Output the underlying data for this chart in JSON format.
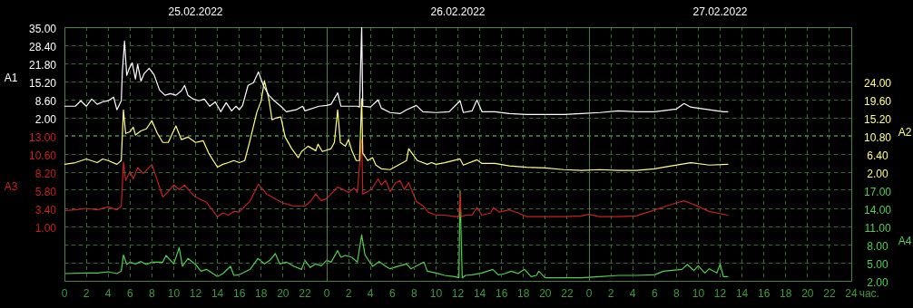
{
  "chart_data": [
    {
      "type": "line",
      "xlabel": "час.",
      "ylabel": "A1",
      "y2label": "A2",
      "xlim": [
        "2022-02-25T00:00",
        "2022-02-28T00:00"
      ],
      "xticks": [
        {
          "value": "2022-02-25T00:00",
          "label": "0"
        },
        {
          "value": "2022-02-25T02:00",
          "label": "2"
        },
        {
          "value": "2022-02-25T04:00",
          "label": "4"
        },
        {
          "value": "2022-02-25T06:00",
          "label": "6"
        },
        {
          "value": "2022-02-25T08:00",
          "label": "8"
        },
        {
          "value": "2022-02-25T10:00",
          "label": "10"
        },
        {
          "value": "2022-02-25T12:00",
          "label": "12"
        },
        {
          "value": "2022-02-25T14:00",
          "label": "14"
        },
        {
          "value": "2022-02-25T16:00",
          "label": "16"
        },
        {
          "value": "2022-02-25T18:00",
          "label": "18"
        },
        {
          "value": "2022-02-25T20:00",
          "label": "20"
        },
        {
          "value": "2022-02-25T22:00",
          "label": "22"
        },
        {
          "value": "2022-02-26T00:00",
          "label": "0"
        },
        {
          "value": "2022-02-26T02:00",
          "label": "2"
        },
        {
          "value": "2022-02-26T04:00",
          "label": "4"
        },
        {
          "value": "2022-02-26T06:00",
          "label": "6"
        },
        {
          "value": "2022-02-26T08:00",
          "label": "8"
        },
        {
          "value": "2022-02-26T10:00",
          "label": "10"
        },
        {
          "value": "2022-02-26T12:00",
          "label": "12"
        },
        {
          "value": "2022-02-26T14:00",
          "label": "14"
        },
        {
          "value": "2022-02-26T16:00",
          "label": "16"
        },
        {
          "value": "2022-02-26T18:00",
          "label": "18"
        },
        {
          "value": "2022-02-26T20:00",
          "label": "20"
        },
        {
          "value": "2022-02-26T22:00",
          "label": "22"
        },
        {
          "value": "2022-02-27T00:00",
          "label": "0"
        },
        {
          "value": "2022-02-27T02:00",
          "label": "2"
        },
        {
          "value": "2022-02-27T04:00",
          "label": "4"
        },
        {
          "value": "2022-02-27T06:00",
          "label": "6"
        },
        {
          "value": "2022-02-27T08:00",
          "label": "8"
        },
        {
          "value": "2022-02-27T10:00",
          "label": "10"
        },
        {
          "value": "2022-02-27T12:00",
          "label": "12"
        },
        {
          "value": "2022-02-27T14:00",
          "label": "14"
        },
        {
          "value": "2022-02-27T16:00",
          "label": "16"
        },
        {
          "value": "2022-02-27T18:00",
          "label": "18"
        },
        {
          "value": "2022-02-27T20:00",
          "label": "20"
        },
        {
          "value": "2022-02-27T22:00",
          "label": "22"
        },
        {
          "value": "2022-02-28T00:00",
          "label": "24"
        }
      ],
      "x2lim": [
        "2022-02-25T00:00",
        "2022-02-28T00:00"
      ],
      "x2ticks": [
        {
          "value": "2022-02-25T12:00",
          "label": "25.02.2022"
        },
        {
          "value": "2022-02-26T12:00",
          "label": "26.02.2022"
        },
        {
          "value": "2022-02-27T12:00",
          "label": "27.02.2022"
        }
      ],
      "ylim": [
        -57.4,
        35
      ],
      "yticks": [
        {
          "value": 2,
          "label": "2.00"
        },
        {
          "value": 8.6,
          "label": "8.60"
        },
        {
          "value": 15.2,
          "label": "15.20"
        },
        {
          "value": 21.8,
          "label": "21.80"
        },
        {
          "value": 28.4,
          "label": "28.40"
        },
        {
          "value": 35,
          "label": "35.00"
        }
      ],
      "y2lim": [
        -24.4,
        37.2
      ],
      "y2ticks": [
        {
          "value": 2,
          "label": "2.00"
        },
        {
          "value": 6.4,
          "label": "6.40"
        },
        {
          "value": 10.8,
          "label": "10.80"
        },
        {
          "value": 15.2,
          "label": "15.20"
        },
        {
          "value": 19.6,
          "label": "19.60"
        },
        {
          "value": 24,
          "label": "24.00"
        }
      ],
      "grid": true,
      "marker": "none",
      "line_style": "solid",
      "series": [
        {
          "axis": "y",
          "color": "#ffffff",
          "x": [
            "2022-02-25T00:00",
            "2022-02-25T01:00",
            "2022-02-25T01:30",
            "2022-02-25T02:00",
            "2022-02-25T02:30",
            "2022-02-25T03:00",
            "2022-02-25T03:30",
            "2022-02-25T04:00",
            "2022-02-25T04:30",
            "2022-02-25T04:48",
            "2022-02-25T05:12",
            "2022-02-25T05:18",
            "2022-02-25T05:30",
            "2022-02-25T05:42",
            "2022-02-25T05:54",
            "2022-02-25T06:12",
            "2022-02-25T06:30",
            "2022-02-25T06:42",
            "2022-02-25T07:00",
            "2022-02-25T07:18",
            "2022-02-25T07:45",
            "2022-02-25T08:12",
            "2022-02-25T08:42",
            "2022-02-25T09:12",
            "2022-02-25T09:42",
            "2022-02-25T10:12",
            "2022-02-25T10:42",
            "2022-02-25T11:00",
            "2022-02-25T11:18",
            "2022-02-25T11:48",
            "2022-02-25T12:18",
            "2022-02-25T12:48",
            "2022-02-25T13:18",
            "2022-02-25T13:48",
            "2022-02-25T14:18",
            "2022-02-25T14:48",
            "2022-02-25T15:18",
            "2022-02-25T15:42",
            "2022-02-25T16:00",
            "2022-02-25T16:18",
            "2022-02-25T16:48",
            "2022-02-25T17:18",
            "2022-02-25T17:45",
            "2022-02-25T18:12",
            "2022-02-25T18:42",
            "2022-02-25T19:12",
            "2022-02-25T19:48",
            "2022-02-25T20:18",
            "2022-02-25T21:12",
            "2022-02-25T21:48",
            "2022-02-25T22:00",
            "2022-02-25T23:18",
            "2022-02-26T00:00",
            "2022-02-26T00:24",
            "2022-02-26T01:00",
            "2022-02-26T01:18",
            "2022-02-26T02:06",
            "2022-02-26T02:48",
            "2022-02-26T03:00",
            "2022-02-26T03:12",
            "2022-02-26T03:18",
            "2022-02-26T04:00",
            "2022-02-26T04:42",
            "2022-02-26T05:00",
            "2022-02-26T05:48",
            "2022-02-26T06:42",
            "2022-02-26T07:18",
            "2022-02-26T08:12",
            "2022-02-26T08:48",
            "2022-02-26T10:00",
            "2022-02-26T11:12",
            "2022-02-26T12:12",
            "2022-02-26T12:30",
            "2022-02-26T13:18",
            "2022-02-26T13:45",
            "2022-02-26T14:12",
            "2022-02-26T15:24",
            "2022-02-26T16:42",
            "2022-02-26T18:18",
            "2022-02-26T20:00",
            "2022-02-26T21:42",
            "2022-02-26T23:18",
            "2022-02-27T01:00",
            "2022-02-27T02:42",
            "2022-02-27T04:18",
            "2022-02-27T06:00",
            "2022-02-27T08:00",
            "2022-02-27T08:42",
            "2022-02-27T09:18",
            "2022-02-27T11:00",
            "2022-02-27T12:18",
            "2022-02-27T12:42"
          ],
          "values": [
            6.2,
            6.2,
            8.2,
            6.2,
            8.8,
            6.9,
            7.8,
            8.2,
            9.5,
            4.9,
            8.2,
            18.7,
            29.9,
            17.4,
            19.7,
            22.0,
            16.1,
            21.4,
            15.4,
            18.1,
            20.0,
            17.7,
            12.1,
            10.2,
            10.8,
            10.2,
            11.8,
            13.8,
            10.2,
            8.8,
            8.2,
            8.8,
            6.2,
            7.8,
            4.2,
            7.5,
            4.5,
            6.2,
            4.9,
            6.5,
            13.8,
            14.8,
            18.7,
            13.8,
            10.2,
            8.2,
            6.2,
            4.2,
            4.9,
            6.2,
            4.5,
            6.2,
            6.5,
            6.9,
            11.1,
            6.2,
            6.2,
            6.2,
            5.9,
            35,
            6.2,
            5.9,
            8.5,
            5.5,
            3.9,
            3.5,
            4.9,
            6.5,
            4.2,
            3.9,
            4.2,
            8.2,
            3.9,
            4.5,
            8.5,
            4.2,
            4.2,
            3.5,
            3.2,
            3.2,
            3.2,
            3.5,
            3.9,
            4.5,
            4.2,
            4.2,
            5.2,
            7.2,
            5.9,
            4.9,
            4.2,
            4.2
          ]
        },
        {
          "axis": "y2",
          "color": "#ffff80",
          "x": [
            "2022-02-25T00:00",
            "2022-02-25T01:00",
            "2022-02-25T02:00",
            "2022-02-25T03:00",
            "2022-02-25T03:30",
            "2022-02-25T04:00",
            "2022-02-25T04:48",
            "2022-02-25T05:12",
            "2022-02-25T05:24",
            "2022-02-25T05:36",
            "2022-02-25T06:00",
            "2022-02-25T06:18",
            "2022-02-25T06:30",
            "2022-02-25T07:00",
            "2022-02-25T07:30",
            "2022-02-25T08:00",
            "2022-02-25T08:30",
            "2022-02-25T09:00",
            "2022-02-25T09:30",
            "2022-02-25T10:12",
            "2022-02-25T10:42",
            "2022-02-25T11:18",
            "2022-02-25T12:00",
            "2022-02-25T12:42",
            "2022-02-25T13:12",
            "2022-02-25T14:00",
            "2022-02-25T14:30",
            "2022-02-25T15:00",
            "2022-02-25T15:30",
            "2022-02-25T16:00",
            "2022-02-25T16:30",
            "2022-02-25T17:00",
            "2022-02-25T17:36",
            "2022-02-25T18:00",
            "2022-02-25T18:18",
            "2022-02-25T18:42",
            "2022-02-25T19:00",
            "2022-02-25T19:18",
            "2022-02-25T19:48",
            "2022-02-25T20:12",
            "2022-02-25T20:48",
            "2022-02-25T21:24",
            "2022-02-25T21:42",
            "2022-02-25T22:18",
            "2022-02-25T23:00",
            "2022-02-25T23:12",
            "2022-02-25T23:36",
            "2022-02-26T00:24",
            "2022-02-26T00:42",
            "2022-02-26T01:00",
            "2022-02-26T01:15",
            "2022-02-26T01:42",
            "2022-02-26T02:00",
            "2022-02-26T02:18",
            "2022-02-26T02:42",
            "2022-02-26T03:00",
            "2022-02-26T03:12",
            "2022-02-26T03:18",
            "2022-02-26T03:45",
            "2022-02-26T04:12",
            "2022-02-26T04:30",
            "2022-02-26T05:00",
            "2022-02-26T05:48",
            "2022-02-26T07:18",
            "2022-02-26T07:30",
            "2022-02-26T08:18",
            "2022-02-26T09:12",
            "2022-02-26T09:36",
            "2022-02-26T10:00",
            "2022-02-26T10:48",
            "2022-02-26T12:12",
            "2022-02-26T12:30",
            "2022-02-26T13:45",
            "2022-02-26T14:12",
            "2022-02-26T15:24",
            "2022-02-26T16:42",
            "2022-02-26T18:18",
            "2022-02-26T20:00",
            "2022-02-26T21:42",
            "2022-02-26T23:18",
            "2022-02-27T01:00",
            "2022-02-27T02:42",
            "2022-02-27T04:18",
            "2022-02-27T06:00",
            "2022-02-27T06:48",
            "2022-02-27T09:18",
            "2022-02-27T11:00",
            "2022-02-27T12:42"
          ],
          "values": [
            3.9,
            4.3,
            5.2,
            4.3,
            5.2,
            4.8,
            3.9,
            4.8,
            17.1,
            11.4,
            11.8,
            12.9,
            11.0,
            12.0,
            12.5,
            14.5,
            11.4,
            9.2,
            9.2,
            13.2,
            9.9,
            10.5,
            9.2,
            9.6,
            6.6,
            3.2,
            3.9,
            4.3,
            4.8,
            4.3,
            4.8,
            9.9,
            16.5,
            19.3,
            24.2,
            19.8,
            14.7,
            15.1,
            15.4,
            10.5,
            7.7,
            5.5,
            7.0,
            8.3,
            7.2,
            8.8,
            7.0,
            7.7,
            9.2,
            17.1,
            9.2,
            8.3,
            9.9,
            7.2,
            4.8,
            4.8,
            19.8,
            6.6,
            4.8,
            5.5,
            3.7,
            2.8,
            2.6,
            4.8,
            7.7,
            4.8,
            3.9,
            4.3,
            3.9,
            4.3,
            5.2,
            3.7,
            5.0,
            4.1,
            4.1,
            3.5,
            3.2,
            3.0,
            2.6,
            2.4,
            2.6,
            2.4,
            2.4,
            2.8,
            3.2,
            4.3,
            3.7,
            3.9
          ]
        }
      ]
    },
    {
      "type": "line",
      "ylabel": "A3",
      "y2label": "A4",
      "tick_labels": "y",
      "xlim": [
        "2022-02-25T00:00",
        "2022-02-28T00:00"
      ],
      "ylim": [
        -6.2,
        27.4
      ],
      "yticks": [
        {
          "value": 1,
          "label": "1.00"
        },
        {
          "value": 3.4,
          "label": "3.40"
        },
        {
          "value": 5.8,
          "label": "5.80"
        },
        {
          "value": 8.2,
          "label": "8.20"
        },
        {
          "value": 10.6,
          "label": "10.60"
        },
        {
          "value": 13,
          "label": "13.00"
        }
      ],
      "y2lim": [
        2,
        44
      ],
      "y2ticks": [
        {
          "value": 2,
          "label": "2.00"
        },
        {
          "value": 5,
          "label": "5.00"
        },
        {
          "value": 8,
          "label": "8.00"
        },
        {
          "value": 11,
          "label": "11.00"
        },
        {
          "value": 14,
          "label": "14.00"
        },
        {
          "value": 17,
          "label": "17.00"
        }
      ],
      "grid": "y",
      "marker": "none",
      "line_style": "solid",
      "series": [
        {
          "axis": "y",
          "color": "#c82020",
          "x": [
            "2022-02-25T00:00",
            "2022-02-25T01:00",
            "2022-02-25T02:00",
            "2022-02-25T03:00",
            "2022-02-25T04:00",
            "2022-02-25T04:48",
            "2022-02-25T05:12",
            "2022-02-25T05:24",
            "2022-02-25T05:36",
            "2022-02-25T06:00",
            "2022-02-25T06:18",
            "2022-02-25T06:42",
            "2022-02-25T07:12",
            "2022-02-25T08:00",
            "2022-02-25T08:30",
            "2022-02-25T09:00",
            "2022-02-25T09:30",
            "2022-02-25T10:00",
            "2022-02-25T10:30",
            "2022-02-25T11:00",
            "2022-02-25T11:30",
            "2022-02-25T12:00",
            "2022-02-25T13:00",
            "2022-02-25T14:00",
            "2022-02-25T14:30",
            "2022-02-25T15:00",
            "2022-02-25T15:30",
            "2022-02-25T16:00",
            "2022-02-25T17:00",
            "2022-02-25T17:45",
            "2022-02-25T18:30",
            "2022-02-25T19:00",
            "2022-02-25T20:00",
            "2022-02-25T21:00",
            "2022-02-25T22:00",
            "2022-02-25T22:30",
            "2022-02-25T23:00",
            "2022-02-25T23:30",
            "2022-02-26T00:00",
            "2022-02-26T01:00",
            "2022-02-26T01:30",
            "2022-02-26T02:00",
            "2022-02-26T02:30",
            "2022-02-26T02:48",
            "2022-02-26T03:12",
            "2022-02-26T03:18",
            "2022-02-26T03:45",
            "2022-02-26T04:12",
            "2022-02-26T04:42",
            "2022-02-26T05:00",
            "2022-02-26T05:24",
            "2022-02-26T05:48",
            "2022-02-26T06:15",
            "2022-02-26T06:42",
            "2022-02-26T07:06",
            "2022-02-26T07:30",
            "2022-02-26T08:12",
            "2022-02-26T08:45",
            "2022-02-26T09:18",
            "2022-02-26T10:00",
            "2022-02-26T10:48",
            "2022-02-26T11:42",
            "2022-02-26T12:06",
            "2022-02-26T12:12",
            "2022-02-26T12:18",
            "2022-02-26T12:42",
            "2022-02-26T13:18",
            "2022-02-26T13:45",
            "2022-02-26T14:12",
            "2022-02-26T15:00",
            "2022-02-26T15:15",
            "2022-02-26T15:48",
            "2022-02-26T16:42",
            "2022-02-26T17:30",
            "2022-02-26T18:18",
            "2022-02-26T20:00",
            "2022-02-26T21:42",
            "2022-02-26T23:18",
            "2022-02-27T00:00",
            "2022-02-27T01:00",
            "2022-02-27T02:42",
            "2022-02-27T04:18",
            "2022-02-27T05:36",
            "2022-02-27T07:42",
            "2022-02-27T08:42",
            "2022-02-27T09:45",
            "2022-02-27T11:00",
            "2022-02-27T12:42"
          ],
          "values": [
            3.1,
            3.2,
            3.4,
            3.2,
            3.6,
            3.2,
            3.7,
            9.5,
            7.1,
            8.3,
            7.3,
            8.8,
            8.0,
            9.2,
            7.1,
            4.9,
            5.6,
            6.5,
            5.9,
            6.5,
            5.6,
            4.9,
            4.2,
            2.3,
            2.8,
            2.5,
            3.0,
            2.9,
            4.4,
            6.6,
            5.3,
            4.9,
            4.1,
            3.7,
            3.7,
            4.3,
            5.3,
            4.4,
            4.7,
            6.2,
            5.9,
            5.5,
            6.1,
            5.5,
            12.5,
            5.3,
            5.6,
            6.1,
            7.3,
            6.5,
            7.1,
            5.6,
            6.7,
            7.1,
            5.9,
            6.8,
            4.3,
            3.8,
            2.9,
            2.5,
            2.5,
            2.3,
            2.3,
            5.6,
            2.3,
            2.5,
            2.5,
            3.5,
            2.5,
            2.8,
            3.5,
            2.9,
            3.2,
            2.8,
            2.3,
            2.3,
            2.3,
            2.4,
            2.6,
            2.3,
            2.3,
            2.4,
            3.0,
            4.0,
            4.4,
            3.8,
            3.0,
            2.5
          ]
        },
        {
          "axis": "y2",
          "color": "#50d050",
          "x": [
            "2022-02-25T00:00",
            "2022-02-25T02:00",
            "2022-02-25T03:00",
            "2022-02-25T04:00",
            "2022-02-25T04:48",
            "2022-02-25T05:12",
            "2022-02-25T05:24",
            "2022-02-25T05:42",
            "2022-02-25T06:00",
            "2022-02-25T06:30",
            "2022-02-25T07:00",
            "2022-02-25T07:30",
            "2022-02-25T08:00",
            "2022-02-25T09:00",
            "2022-02-25T09:18",
            "2022-02-25T10:00",
            "2022-02-25T10:30",
            "2022-02-25T10:48",
            "2022-02-25T11:18",
            "2022-02-25T12:00",
            "2022-02-25T12:30",
            "2022-02-25T13:00",
            "2022-02-25T14:00",
            "2022-02-25T14:30",
            "2022-02-25T15:12",
            "2022-02-25T15:30",
            "2022-02-25T16:00",
            "2022-02-25T17:00",
            "2022-02-25T17:42",
            "2022-02-25T18:18",
            "2022-02-25T18:48",
            "2022-02-25T19:18",
            "2022-02-25T19:42",
            "2022-02-25T20:18",
            "2022-02-25T21:00",
            "2022-02-25T21:42",
            "2022-02-25T22:00",
            "2022-02-25T22:30",
            "2022-02-25T23:00",
            "2022-02-25T23:30",
            "2022-02-26T00:00",
            "2022-02-26T00:24",
            "2022-02-26T01:00",
            "2022-02-26T01:18",
            "2022-02-26T01:42",
            "2022-02-26T02:18",
            "2022-02-26T02:48",
            "2022-02-26T03:12",
            "2022-02-26T03:30",
            "2022-02-26T04:12",
            "2022-02-26T04:48",
            "2022-02-26T05:24",
            "2022-02-26T05:48",
            "2022-02-26T06:42",
            "2022-02-26T07:18",
            "2022-02-26T07:42",
            "2022-02-26T08:54",
            "2022-02-26T09:12",
            "2022-02-26T10:00",
            "2022-02-26T10:48",
            "2022-02-26T11:42",
            "2022-02-26T12:06",
            "2022-02-26T12:12",
            "2022-02-26T12:24",
            "2022-02-26T12:42",
            "2022-02-26T13:18",
            "2022-02-26T14:12",
            "2022-02-26T15:12",
            "2022-02-26T15:42",
            "2022-02-26T16:18",
            "2022-02-26T16:54",
            "2022-02-26T17:30",
            "2022-02-26T18:06",
            "2022-02-26T18:42",
            "2022-02-26T19:12",
            "2022-02-26T19:24",
            "2022-02-26T20:00",
            "2022-02-26T21:42",
            "2022-02-26T23:18",
            "2022-02-27T01:00",
            "2022-02-27T02:42",
            "2022-02-27T04:18",
            "2022-02-27T06:00",
            "2022-02-27T06:48",
            "2022-02-27T08:30",
            "2022-02-27T09:00",
            "2022-02-27T09:36",
            "2022-02-27T10:00",
            "2022-02-27T10:36",
            "2022-02-27T11:00",
            "2022-02-27T11:42",
            "2022-02-27T12:00",
            "2022-02-27T12:18",
            "2022-02-27T12:42"
          ],
          "values": [
            3.2,
            3.3,
            3.3,
            3.5,
            3.2,
            3.6,
            6.3,
            4.7,
            5.1,
            4.8,
            5.2,
            4.7,
            5.1,
            5.1,
            6.2,
            4.8,
            7.5,
            4.4,
            5.7,
            4.7,
            3.6,
            3.9,
            2.7,
            3.2,
            4.4,
            2.9,
            3.0,
            3.9,
            5.7,
            4.8,
            5.4,
            6.5,
            4.8,
            5.1,
            4.4,
            3.9,
            5.4,
            4.2,
            4.8,
            4.5,
            5.4,
            5.1,
            7.0,
            5.9,
            6.2,
            5.9,
            5.1,
            9.6,
            6.3,
            4.4,
            5.2,
            4.4,
            4.0,
            4.5,
            4.8,
            4.0,
            5.1,
            3.6,
            3.3,
            2.9,
            2.7,
            2.5,
            16.9,
            2.5,
            2.9,
            3.0,
            3.3,
            3.9,
            3.0,
            3.2,
            3.6,
            3.2,
            3.9,
            2.7,
            2.9,
            3.6,
            2.5,
            2.5,
            2.5,
            2.7,
            2.9,
            2.9,
            3.0,
            3.6,
            3.9,
            4.7,
            3.7,
            4.5,
            3.3,
            4.0,
            3.3,
            4.8,
            2.7,
            2.7
          ]
        }
      ]
    }
  ]
}
